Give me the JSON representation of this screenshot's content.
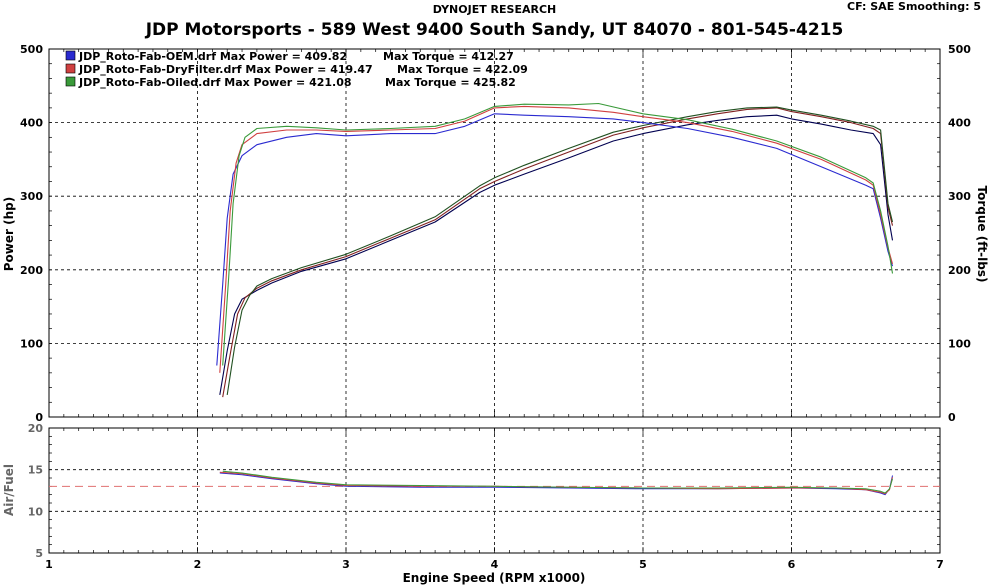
{
  "header": {
    "research": "DYNOJET RESEARCH",
    "cf_smoothing": "CF: SAE  Smoothing: 5",
    "title": "JDP Motorsports - 589 West 9400 South  Sandy, UT 84070 - 801-545-4215"
  },
  "colors": {
    "oem": "#2a2ad0",
    "dry": "#d04040",
    "oiled": "#3a9a3a",
    "oem_tq": "#000050",
    "dry_tq": "#802020",
    "oiled_tq": "#205020",
    "target_afr": "#e07070",
    "grid": "#000000"
  },
  "chart_data": [
    {
      "type": "line",
      "panel": "power-torque",
      "xlabel": "Engine Speed (RPM x1000)",
      "ylabel": "Power (hp)",
      "y2label": "Torque (ft-lbs)",
      "xlim": [
        1,
        7
      ],
      "ylim": [
        0,
        500
      ],
      "y2lim": [
        0,
        500
      ],
      "xticks": [
        1,
        2,
        3,
        4,
        5,
        6,
        7
      ],
      "yticks": [
        0,
        100,
        200,
        300,
        400,
        500
      ],
      "grid": true,
      "legend_position": "top-left",
      "legend": [
        {
          "key": "oem",
          "file": "JDP_Roto-Fab-OEM.drf",
          "max_power": "Max Power = 409.82",
          "max_torque": "Max Torque = 412.27"
        },
        {
          "key": "dry",
          "file": "JDP_Roto-Fab-DryFilter.drf",
          "max_power": "Max Power = 419.47",
          "max_torque": "Max Torque = 422.09"
        },
        {
          "key": "oiled",
          "file": "JDP_Roto-Fab-Oiled.drf",
          "max_power": "Max Power = 421.08",
          "max_torque": "Max Torque = 425.82"
        }
      ],
      "series": [
        {
          "key": "oem",
          "measure": "power",
          "x": [
            2.15,
            2.2,
            2.25,
            2.3,
            2.4,
            2.5,
            2.7,
            3.0,
            3.3,
            3.6,
            3.9,
            4.0,
            4.2,
            4.5,
            4.8,
            5.0,
            5.3,
            5.5,
            5.7,
            5.9,
            6.0,
            6.2,
            6.4,
            6.55,
            6.6,
            6.65,
            6.68
          ],
          "y": [
            30,
            90,
            140,
            160,
            172,
            182,
            198,
            215,
            240,
            265,
            305,
            315,
            330,
            352,
            375,
            385,
            397,
            403,
            408,
            410,
            405,
            398,
            390,
            385,
            370,
            275,
            240
          ]
        },
        {
          "key": "dry",
          "measure": "power",
          "x": [
            2.17,
            2.22,
            2.27,
            2.32,
            2.4,
            2.5,
            2.7,
            3.0,
            3.3,
            3.6,
            3.9,
            4.0,
            4.2,
            4.5,
            4.8,
            5.0,
            5.3,
            5.5,
            5.7,
            5.9,
            6.0,
            6.2,
            6.4,
            6.55,
            6.6,
            6.65,
            6.68
          ],
          "y": [
            27,
            85,
            140,
            162,
            175,
            185,
            200,
            218,
            243,
            268,
            310,
            320,
            337,
            360,
            383,
            393,
            405,
            412,
            418,
            420,
            415,
            408,
            400,
            392,
            385,
            285,
            260
          ]
        },
        {
          "key": "oiled",
          "measure": "power",
          "x": [
            2.2,
            2.25,
            2.3,
            2.35,
            2.4,
            2.5,
            2.7,
            3.0,
            3.3,
            3.6,
            3.9,
            4.0,
            4.2,
            4.5,
            4.8,
            5.0,
            5.3,
            5.5,
            5.7,
            5.9,
            6.0,
            6.2,
            6.4,
            6.55,
            6.6,
            6.65,
            6.68
          ],
          "y": [
            30,
            95,
            145,
            165,
            178,
            188,
            203,
            221,
            246,
            272,
            314,
            325,
            342,
            365,
            387,
            396,
            408,
            415,
            420,
            421,
            417,
            410,
            402,
            395,
            390,
            290,
            265
          ]
        },
        {
          "key": "oem",
          "measure": "torque",
          "x": [
            2.13,
            2.17,
            2.2,
            2.24,
            2.3,
            2.4,
            2.6,
            2.8,
            3.0,
            3.3,
            3.6,
            3.8,
            4.0,
            4.2,
            4.5,
            4.8,
            5.0,
            5.3,
            5.6,
            5.9,
            6.2,
            6.5,
            6.55,
            6.6,
            6.65,
            6.68
          ],
          "y": [
            70,
            180,
            270,
            330,
            355,
            370,
            380,
            385,
            382,
            385,
            385,
            395,
            412,
            410,
            408,
            405,
            400,
            392,
            380,
            365,
            340,
            315,
            310,
            270,
            225,
            205
          ]
        },
        {
          "key": "dry",
          "measure": "torque",
          "x": [
            2.15,
            2.19,
            2.22,
            2.26,
            2.3,
            2.4,
            2.6,
            2.8,
            3.0,
            3.3,
            3.6,
            3.8,
            4.0,
            4.2,
            4.5,
            4.8,
            5.0,
            5.3,
            5.6,
            5.9,
            6.2,
            6.5,
            6.55,
            6.6,
            6.65,
            6.68
          ],
          "y": [
            60,
            180,
            280,
            345,
            370,
            385,
            390,
            390,
            388,
            390,
            392,
            402,
            420,
            422,
            420,
            414,
            408,
            400,
            388,
            372,
            350,
            322,
            315,
            275,
            230,
            208
          ]
        },
        {
          "key": "oiled",
          "measure": "torque",
          "x": [
            2.17,
            2.21,
            2.24,
            2.28,
            2.32,
            2.4,
            2.6,
            2.8,
            3.0,
            3.3,
            3.6,
            3.8,
            4.0,
            4.2,
            4.5,
            4.7,
            5.0,
            5.3,
            5.6,
            5.9,
            6.2,
            6.5,
            6.55,
            6.6,
            6.65,
            6.68
          ],
          "y": [
            70,
            190,
            290,
            355,
            380,
            392,
            395,
            393,
            390,
            392,
            395,
            405,
            422,
            425,
            424,
            426,
            412,
            404,
            391,
            375,
            353,
            325,
            318,
            280,
            232,
            195
          ]
        }
      ]
    },
    {
      "type": "line",
      "panel": "air-fuel",
      "xlabel": "Engine Speed (RPM x1000)",
      "ylabel": "Air/Fuel",
      "xlim": [
        1,
        7
      ],
      "ylim": [
        5,
        20
      ],
      "xticks": [
        1,
        2,
        3,
        4,
        5,
        6,
        7
      ],
      "yticks": [
        5,
        10,
        15,
        20
      ],
      "grid": true,
      "target": 13.0,
      "series": [
        {
          "key": "oem",
          "x": [
            2.15,
            2.3,
            2.5,
            2.8,
            3.0,
            3.5,
            4.0,
            4.5,
            5.0,
            5.5,
            6.0,
            6.3,
            6.5,
            6.6,
            6.63,
            6.66,
            6.68
          ],
          "y": [
            14.6,
            14.4,
            13.9,
            13.3,
            13.0,
            12.9,
            12.9,
            12.8,
            12.7,
            12.7,
            12.8,
            12.7,
            12.6,
            12.2,
            12.0,
            12.7,
            14.3
          ]
        },
        {
          "key": "dry",
          "x": [
            2.15,
            2.3,
            2.5,
            2.8,
            3.0,
            3.5,
            4.0,
            4.5,
            5.0,
            5.5,
            6.0,
            6.3,
            6.5,
            6.6,
            6.63,
            6.66,
            6.68
          ],
          "y": [
            14.7,
            14.5,
            14.0,
            13.4,
            13.1,
            13.0,
            13.0,
            12.9,
            12.8,
            12.7,
            12.8,
            12.8,
            12.6,
            12.3,
            12.1,
            12.6,
            14.1
          ]
        },
        {
          "key": "oiled",
          "x": [
            2.17,
            2.3,
            2.5,
            2.8,
            3.0,
            3.5,
            4.0,
            4.5,
            5.0,
            5.5,
            6.0,
            6.3,
            6.5,
            6.6,
            6.63,
            6.66,
            6.68
          ],
          "y": [
            14.8,
            14.6,
            14.1,
            13.5,
            13.2,
            13.1,
            13.0,
            12.9,
            12.8,
            12.8,
            12.9,
            12.8,
            12.7,
            12.4,
            12.2,
            12.7,
            13.9
          ]
        }
      ]
    }
  ]
}
